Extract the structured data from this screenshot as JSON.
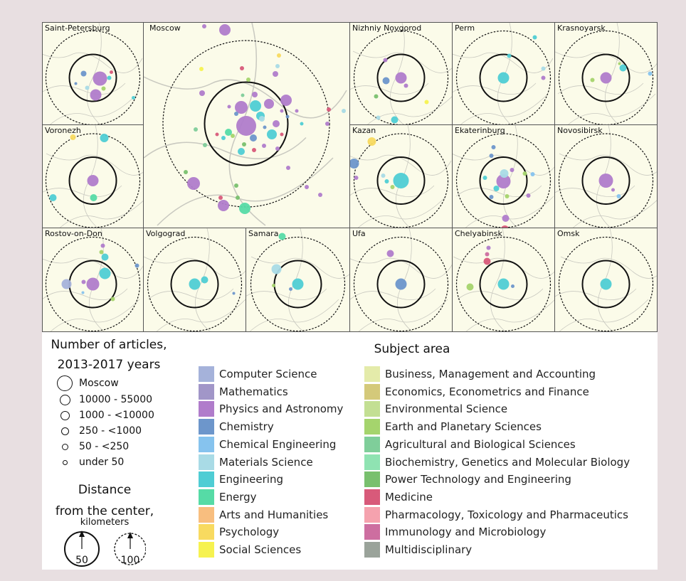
{
  "colors": {
    "computer_science": "#a5b2da",
    "mathematics": "#a196c8",
    "physics": "#b07ccb",
    "chemistry": "#6d96cb",
    "chemical_engineering": "#86c3ee",
    "materials": "#a9dbe6",
    "engineering": "#4fcdd4",
    "energy": "#56dba6",
    "arts": "#f8be7f",
    "psychology": "#f8da60",
    "social": "#f6f250",
    "business": "#e4ebaa",
    "economics": "#d4c97a",
    "environmental": "#c3df93",
    "earth": "#a5d46d",
    "agricultural": "#7fce9a",
    "biochemistry": "#8fe3b2",
    "power": "#79c06e",
    "medicine": "#d85a7a",
    "pharmacology": "#f5a2ae",
    "immunology": "#cd6ea0",
    "multidisciplinary": "#9aa39a"
  },
  "cities": [
    {
      "name": "Saint-Petersburg",
      "inner_km": 50,
      "outer_km": 100,
      "dots": [
        {
          "s": "physics",
          "r": 10,
          "dx": 10,
          "dy": 1
        },
        {
          "s": "physics",
          "r": 8,
          "dx": 4,
          "dy": 24
        },
        {
          "s": "chemistry",
          "r": 4,
          "dx": -13,
          "dy": -6
        },
        {
          "s": "engineering",
          "r": 3,
          "dx": 23,
          "dy": 0
        },
        {
          "s": "earth",
          "r": 3,
          "dx": 15,
          "dy": 15
        },
        {
          "s": "materials",
          "r": 3,
          "dx": -8,
          "dy": 14
        },
        {
          "s": "medicine",
          "r": 2.5,
          "dx": 26,
          "dy": -8
        },
        {
          "s": "engineering",
          "r": 2.5,
          "dx": 57,
          "dy": 28
        },
        {
          "s": "chemistry",
          "r": 2,
          "dx": -24,
          "dy": 8
        }
      ]
    },
    {
      "name": "Moscow",
      "inner_km": 50,
      "outer_km": 100,
      "dots": [
        {
          "s": "physics",
          "r": 14,
          "dx": 0,
          "dy": 3
        },
        {
          "s": "physics",
          "r": 9,
          "dx": -7,
          "dy": -23
        },
        {
          "s": "engineering",
          "r": 8,
          "dx": 13,
          "dy": -25
        },
        {
          "s": "physics",
          "r": 8,
          "dx": 56,
          "dy": -33
        },
        {
          "s": "physics",
          "r": 7,
          "dx": 32,
          "dy": -28
        },
        {
          "s": "engineering",
          "r": 7,
          "dx": 36,
          "dy": 15
        },
        {
          "s": "engineering",
          "r": 6,
          "dx": 20,
          "dy": -11
        },
        {
          "s": "chemistry",
          "r": 5,
          "dx": 10,
          "dy": 20
        },
        {
          "s": "engineering",
          "r": 5,
          "dx": -7,
          "dy": 39
        },
        {
          "s": "energy",
          "r": 5,
          "dx": -25,
          "dy": 12
        },
        {
          "s": "physics",
          "r": 5,
          "dx": 42,
          "dy": 0
        },
        {
          "s": "physics",
          "r": 4,
          "dx": 12,
          "dy": -41
        },
        {
          "s": "materials",
          "r": 4,
          "dx": 22,
          "dy": -7
        },
        {
          "s": "chemistry",
          "r": 3,
          "dx": -14,
          "dy": -14
        },
        {
          "s": "medicine",
          "r": 3,
          "dx": 11,
          "dy": 37
        },
        {
          "s": "power",
          "r": 3,
          "dx": -3,
          "dy": 29
        },
        {
          "s": "physics",
          "r": 3,
          "dx": 25,
          "dy": 31
        },
        {
          "s": "physics",
          "r": 3,
          "dx": 44,
          "dy": 35
        },
        {
          "s": "medicine",
          "r": 2.5,
          "dx": 50,
          "dy": 15
        },
        {
          "s": "engineering",
          "r": 3,
          "dx": -32,
          "dy": 20
        },
        {
          "s": "earth",
          "r": 3,
          "dx": -19,
          "dy": 17
        },
        {
          "s": "chemistry",
          "r": 2.5,
          "dx": 26,
          "dy": 5
        },
        {
          "s": "medicine",
          "r": 2.5,
          "dx": -41,
          "dy": 15
        },
        {
          "s": "physics",
          "r": 2.5,
          "dx": 50,
          "dy": -18
        },
        {
          "s": "chemistry",
          "r": 2.5,
          "dx": 58,
          "dy": -10
        },
        {
          "s": "agricultural",
          "r": 2.5,
          "dx": -5,
          "dy": -40
        },
        {
          "s": "physics",
          "r": 2.5,
          "dx": -24,
          "dy": -24
        },
        {
          "s": "physics",
          "r": 2.5,
          "dx": 71,
          "dy": -18
        },
        {
          "s": "engineering",
          "r": 2.5,
          "dx": 78,
          "dy": 0
        },
        {
          "s": "medicine",
          "r": 3,
          "dx": 116,
          "dy": -20
        },
        {
          "s": "physics",
          "r": 3,
          "dx": 114,
          "dy": 0
        },
        {
          "s": "physics",
          "r": 9,
          "dx": -74,
          "dy": 84
        },
        {
          "s": "physics",
          "r": 8,
          "dx": -32,
          "dy": 115
        },
        {
          "s": "energy",
          "r": 8,
          "dx": -2,
          "dy": 119
        },
        {
          "s": "physics",
          "r": 8,
          "dx": -30,
          "dy": -132
        },
        {
          "s": "physics",
          "r": 4,
          "dx": 41,
          "dy": -70
        },
        {
          "s": "physics",
          "r": 4,
          "dx": -62,
          "dy": -43
        },
        {
          "s": "physics",
          "r": 3,
          "dx": 59,
          "dy": 62
        },
        {
          "s": "physics",
          "r": 3,
          "dx": 85,
          "dy": 89
        },
        {
          "s": "physics",
          "r": 3,
          "dx": 104,
          "dy": 100
        },
        {
          "s": "medicine",
          "r": 3,
          "dx": -6,
          "dy": -78
        },
        {
          "s": "physics",
          "r": 3,
          "dx": -59,
          "dy": -137
        },
        {
          "s": "social",
          "r": 3,
          "dx": -63,
          "dy": -77
        },
        {
          "s": "power",
          "r": 3,
          "dx": -85,
          "dy": 68
        },
        {
          "s": "agricultural",
          "r": 3,
          "dx": -71,
          "dy": 8
        },
        {
          "s": "earth",
          "r": 3,
          "dx": 3,
          "dy": -62
        },
        {
          "s": "materials",
          "r": 3,
          "dx": 44,
          "dy": -81
        },
        {
          "s": "psychology",
          "r": 3,
          "dx": 46,
          "dy": -96
        },
        {
          "s": "power",
          "r": 3,
          "dx": -12,
          "dy": 104
        },
        {
          "s": "medicine",
          "r": 3,
          "dx": -36,
          "dy": 104
        },
        {
          "s": "agricultural",
          "r": 3,
          "dx": -58,
          "dy": 30
        },
        {
          "s": "power",
          "r": 3,
          "dx": -14,
          "dy": 87
        },
        {
          "s": "materials",
          "r": 3,
          "dx": 137,
          "dy": -18
        }
      ]
    },
    {
      "name": "Nizhniy Novgorod",
      "inner_km": 50,
      "outer_km": 100,
      "dots": [
        {
          "s": "physics",
          "r": 8,
          "dx": 0,
          "dy": 0
        },
        {
          "s": "chemistry",
          "r": 5,
          "dx": -21,
          "dy": 4
        },
        {
          "s": "physics",
          "r": 3,
          "dx": 7,
          "dy": 11
        },
        {
          "s": "engineering",
          "r": 5,
          "dx": -9,
          "dy": 59
        },
        {
          "s": "power",
          "r": 3,
          "dx": -35,
          "dy": 26
        },
        {
          "s": "social",
          "r": 3,
          "dx": 36,
          "dy": 34
        },
        {
          "s": "physics",
          "r": 3,
          "dx": -22,
          "dy": -25
        },
        {
          "s": "materials",
          "r": 3,
          "dx": -32,
          "dy": 56
        }
      ]
    },
    {
      "name": "Perm",
      "inner_km": 50,
      "outer_km": 100,
      "dots": [
        {
          "s": "engineering",
          "r": 8,
          "dx": 0,
          "dy": 0
        },
        {
          "s": "engineering",
          "r": 3,
          "dx": 8,
          "dy": -31
        },
        {
          "s": "engineering",
          "r": 3,
          "dx": 44,
          "dy": -57
        },
        {
          "s": "physics",
          "r": 3,
          "dx": 56,
          "dy": 0
        },
        {
          "s": "materials",
          "r": 3,
          "dx": 56,
          "dy": -13
        }
      ]
    },
    {
      "name": "Krasnoyarsk",
      "inner_km": 50,
      "outer_km": 100,
      "dots": [
        {
          "s": "physics",
          "r": 8,
          "dx": 0,
          "dy": 0
        },
        {
          "s": "engineering",
          "r": 5,
          "dx": 24,
          "dy": -14
        },
        {
          "s": "earth",
          "r": 3,
          "dx": -19,
          "dy": 3
        },
        {
          "s": "chemical_engineering",
          "r": 3,
          "dx": 62,
          "dy": -6
        },
        {
          "s": "earth",
          "r": 2,
          "dx": 19,
          "dy": -20
        }
      ]
    },
    {
      "name": "Voronezh",
      "inner_km": 50,
      "outer_km": 100,
      "dots": [
        {
          "s": "physics",
          "r": 8,
          "dx": 0,
          "dy": 0
        },
        {
          "s": "energy",
          "r": 5,
          "dx": 1,
          "dy": 24
        },
        {
          "s": "engineering",
          "r": 6,
          "dx": 16,
          "dy": -60
        },
        {
          "s": "engineering",
          "r": 5,
          "dx": -56,
          "dy": 24
        },
        {
          "s": "psychology",
          "r": 4,
          "dx": -28,
          "dy": -61
        }
      ]
    },
    {
      "name": "Kazan",
      "inner_km": 50,
      "outer_km": 100,
      "dots": [
        {
          "s": "engineering",
          "r": 11,
          "dx": 0,
          "dy": 0
        },
        {
          "s": "chemistry",
          "r": 7,
          "dx": -66,
          "dy": -24
        },
        {
          "s": "psychology",
          "r": 6,
          "dx": -41,
          "dy": -55
        },
        {
          "s": "engineering",
          "r": 3,
          "dx": -20,
          "dy": 1
        },
        {
          "s": "earth",
          "r": 3,
          "dx": -12,
          "dy": 9
        },
        {
          "s": "materials",
          "r": 3,
          "dx": -25,
          "dy": -7
        },
        {
          "s": "physics",
          "r": 3,
          "dx": -63,
          "dy": -4
        }
      ]
    },
    {
      "name": "Ekaterinburg",
      "inner_km": 50,
      "outer_km": 100,
      "dots": [
        {
          "s": "physics",
          "r": 10,
          "dx": 0,
          "dy": 1
        },
        {
          "s": "materials",
          "r": 6,
          "dx": 1,
          "dy": -10
        },
        {
          "s": "engineering",
          "r": 4,
          "dx": -10,
          "dy": 11
        },
        {
          "s": "physics",
          "r": 3,
          "dx": 12,
          "dy": -15
        },
        {
          "s": "chemistry",
          "r": 3,
          "dx": -17,
          "dy": -35
        },
        {
          "s": "chemistry",
          "r": 3,
          "dx": -14,
          "dy": -47
        },
        {
          "s": "engineering",
          "r": 3,
          "dx": -26,
          "dy": -4
        },
        {
          "s": "chemistry",
          "r": 3,
          "dx": -17,
          "dy": 23
        },
        {
          "s": "earth",
          "r": 3,
          "dx": 5,
          "dy": 22
        },
        {
          "s": "earth",
          "r": 3,
          "dx": 30,
          "dy": -10
        },
        {
          "s": "chemical_engineering",
          "r": 3,
          "dx": 41,
          "dy": -9
        },
        {
          "s": "physics",
          "r": 3,
          "dx": 35,
          "dy": 21
        },
        {
          "s": "physics",
          "r": 5,
          "dx": 3,
          "dy": 53
        },
        {
          "s": "medicine",
          "r": 6,
          "dx": 2,
          "dy": 69
        }
      ]
    },
    {
      "name": "Novosibirsk",
      "inner_km": 50,
      "outer_km": 100,
      "dots": [
        {
          "s": "physics",
          "r": 10,
          "dx": 0,
          "dy": 0
        },
        {
          "s": "chemical_engineering",
          "r": 3,
          "dx": 18,
          "dy": 22
        },
        {
          "s": "physics",
          "r": 2.5,
          "dx": 10,
          "dy": 13
        }
      ]
    },
    {
      "name": "Rostov-on-Don",
      "inner_km": 50,
      "outer_km": 100,
      "dots": [
        {
          "s": "physics",
          "r": 9,
          "dx": 0,
          "dy": 0
        },
        {
          "s": "engineering",
          "r": 8,
          "dx": 17,
          "dy": -15
        },
        {
          "s": "computer_science",
          "r": 7,
          "dx": -37,
          "dy": 0
        },
        {
          "s": "engineering",
          "r": 5,
          "dx": 17,
          "dy": -38
        },
        {
          "s": "physics",
          "r": 3,
          "dx": -13,
          "dy": -3
        },
        {
          "s": "earth",
          "r": 3,
          "dx": 28,
          "dy": 21
        },
        {
          "s": "chemistry",
          "r": 3,
          "dx": 62,
          "dy": -26
        },
        {
          "s": "physics",
          "r": 3,
          "dx": 14,
          "dy": -54
        },
        {
          "s": "earth",
          "r": 3,
          "dx": 12,
          "dy": -45
        },
        {
          "s": "chemical_engineering",
          "r": 2,
          "dx": -14,
          "dy": 12
        }
      ]
    },
    {
      "name": "Volgograd",
      "inner_km": 50,
      "outer_km": 100,
      "dots": [
        {
          "s": "engineering",
          "r": 8,
          "dx": 0,
          "dy": 0
        },
        {
          "s": "engineering",
          "r": 5,
          "dx": 14,
          "dy": -6
        },
        {
          "s": "chemistry",
          "r": 2,
          "dx": 55,
          "dy": 13
        }
      ]
    },
    {
      "name": "Samara",
      "inner_km": 50,
      "outer_km": 100,
      "dots": [
        {
          "s": "engineering",
          "r": 8,
          "dx": 0,
          "dy": 0
        },
        {
          "s": "materials",
          "r": 7,
          "dx": -30,
          "dy": -21
        },
        {
          "s": "energy",
          "r": 5,
          "dx": -22,
          "dy": -67
        },
        {
          "s": "chemistry",
          "r": 2.5,
          "dx": -10,
          "dy": 7
        },
        {
          "s": "earth",
          "r": 2.5,
          "dx": -34,
          "dy": 2
        }
      ]
    },
    {
      "name": "Ufa",
      "inner_km": 50,
      "outer_km": 100,
      "dots": [
        {
          "s": "chemistry",
          "r": 8,
          "dx": 0,
          "dy": 0
        },
        {
          "s": "physics",
          "r": 5,
          "dx": -15,
          "dy": -43
        },
        {
          "s": "engineering",
          "r": 4,
          "dx": -4,
          "dy": 71
        }
      ]
    },
    {
      "name": "Chelyabinsk",
      "inner_km": 50,
      "outer_km": 100,
      "dots": [
        {
          "s": "engineering",
          "r": 8,
          "dx": 0,
          "dy": 0
        },
        {
          "s": "medicine",
          "r": 5,
          "dx": -23,
          "dy": -32
        },
        {
          "s": "earth",
          "r": 5,
          "dx": -47,
          "dy": 4
        },
        {
          "s": "immunology",
          "r": 3,
          "dx": -23,
          "dy": -42
        },
        {
          "s": "physics",
          "r": 3,
          "dx": -21,
          "dy": -51
        },
        {
          "s": "chemistry",
          "r": 2.5,
          "dx": 13,
          "dy": 3
        }
      ]
    },
    {
      "name": "Omsk",
      "inner_km": 50,
      "outer_km": 100,
      "dots": [
        {
          "s": "engineering",
          "r": 8,
          "dx": 0,
          "dy": 0
        }
      ]
    }
  ],
  "legend": {
    "size_title_line1": "Number of articles,",
    "size_title_line2": "2013-2017 years",
    "sizes": [
      "Moscow",
      "10000 - 55000",
      "1000 - <10000",
      "250 - <1000",
      "50 - <250",
      "under 50"
    ],
    "distance_title_line1": "Distance",
    "distance_title_line2": "from the center,",
    "distance_unit": "kilometers",
    "distance_inner": "50",
    "distance_outer": "100",
    "subject_title": "Subject area",
    "subjects_left": [
      {
        "key": "computer_science",
        "label": "Computer Science"
      },
      {
        "key": "mathematics",
        "label": "Mathematics"
      },
      {
        "key": "physics",
        "label": "Physics and Astronomy"
      },
      {
        "key": "chemistry",
        "label": "Chemistry"
      },
      {
        "key": "chemical_engineering",
        "label": "Chemical Engineering"
      },
      {
        "key": "materials",
        "label": "Materials Science"
      },
      {
        "key": "engineering",
        "label": "Engineering"
      },
      {
        "key": "energy",
        "label": "Energy"
      },
      {
        "key": "arts",
        "label": "Arts and Humanities"
      },
      {
        "key": "psychology",
        "label": "Psychology"
      },
      {
        "key": "social",
        "label": "Social Sciences"
      }
    ],
    "subjects_right": [
      {
        "key": "business",
        "label": "Business, Management and Accounting"
      },
      {
        "key": "economics",
        "label": "Economics, Econometrics and Finance"
      },
      {
        "key": "environmental",
        "label": "Environmental Science"
      },
      {
        "key": "earth",
        "label": "Earth and Planetary Sciences"
      },
      {
        "key": "agricultural",
        "label": "Agricultural and Biological Sciences"
      },
      {
        "key": "biochemistry",
        "label": "Biochemistry, Genetics and Molecular Biology"
      },
      {
        "key": "power",
        "label": "Power Technology and Engineering"
      },
      {
        "key": "medicine",
        "label": "Medicine"
      },
      {
        "key": "pharmacology",
        "label": "Pharmacology, Toxicology and Pharmaceutics"
      },
      {
        "key": "immunology",
        "label": "Immunology and Microbiology"
      },
      {
        "key": "multidisciplinary",
        "label": "Multidisciplinary"
      }
    ]
  }
}
